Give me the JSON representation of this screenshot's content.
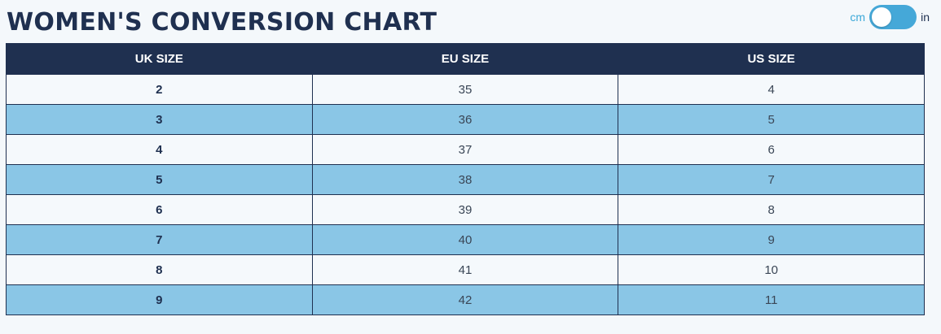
{
  "page": {
    "title": "WOMEN'S CONVERSION CHART"
  },
  "unit_toggle": {
    "left_label": "cm",
    "right_label": "in"
  },
  "table": {
    "headers": [
      "UK SIZE",
      "EU SIZE",
      "US SIZE"
    ],
    "rows": [
      [
        "2",
        "35",
        "4"
      ],
      [
        "3",
        "36",
        "5"
      ],
      [
        "4",
        "37",
        "6"
      ],
      [
        "5",
        "38",
        "7"
      ],
      [
        "6",
        "39",
        "8"
      ],
      [
        "7",
        "40",
        "9"
      ],
      [
        "8",
        "41",
        "10"
      ],
      [
        "9",
        "42",
        "11"
      ]
    ]
  },
  "colors": {
    "header_bg": "#1f3050",
    "stripe_light": "#f5f9fc",
    "stripe_blue": "#8ac6e6",
    "toggle_accent": "#45a8d8"
  }
}
